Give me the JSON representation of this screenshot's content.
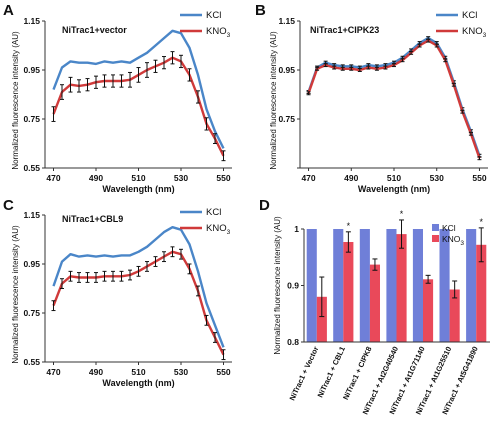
{
  "figure": {
    "panel_letters": [
      "A",
      "B",
      "C",
      "D"
    ]
  },
  "colors": {
    "kcl": "#4a86c8",
    "kno3": "#d03a3a",
    "bar_kcl": "#6f7fd8",
    "bar_kno3": "#e9495a",
    "errorbar": "#111111",
    "marker_kcl": "#1f6fb5",
    "marker_kno3": "#b32020"
  },
  "chart_data": [
    {
      "panel": "A",
      "type": "line",
      "title": "NiTrac1+vector",
      "xlabel": "Wavelength (nm)",
      "ylabel": "Normalized fluorescence intensity (AU)",
      "xlim": [
        466,
        554
      ],
      "ylim": [
        0.55,
        1.15
      ],
      "xticks": [
        470,
        490,
        510,
        530,
        550
      ],
      "yticks": [
        0.55,
        0.75,
        0.95,
        1.15
      ],
      "ytick_labels": [
        "0.55",
        "0.75",
        "0.95",
        "1.15"
      ],
      "legend": "top-right",
      "x": [
        470,
        474,
        478,
        482,
        486,
        490,
        494,
        498,
        502,
        506,
        510,
        514,
        518,
        522,
        526,
        530,
        534,
        538,
        542,
        546,
        550
      ],
      "series": [
        {
          "name": "KCl",
          "label_main": "KCl",
          "label_sub": "",
          "color": "#4a86c8",
          "values": [
            0.87,
            0.96,
            0.985,
            0.98,
            0.98,
            0.975,
            0.985,
            0.98,
            0.985,
            0.98,
            1.0,
            1.02,
            1.05,
            1.08,
            1.11,
            1.1,
            1.04,
            0.93,
            0.79,
            0.7,
            0.63
          ],
          "errors": []
        },
        {
          "name": "KNO3",
          "label_main": "KNO",
          "label_sub": "3",
          "color": "#d03a3a",
          "values": [
            0.77,
            0.86,
            0.89,
            0.885,
            0.89,
            0.9,
            0.905,
            0.905,
            0.905,
            0.91,
            0.93,
            0.95,
            0.965,
            0.98,
            1.0,
            0.985,
            0.93,
            0.84,
            0.73,
            0.67,
            0.6
          ],
          "errors": [
            0.03,
            0.03,
            0.03,
            0.025,
            0.025,
            0.025,
            0.025,
            0.025,
            0.025,
            0.03,
            0.03,
            0.03,
            0.025,
            0.025,
            0.025,
            0.025,
            0.025,
            0.025,
            0.025,
            0.02,
            0.02
          ]
        }
      ]
    },
    {
      "panel": "B",
      "type": "line",
      "title": "NiTrac1+CIPK23",
      "xlabel": "Wavelength (nm)",
      "ylabel": "Normalized fluorescence intensity (AU)",
      "xlim": [
        466,
        554
      ],
      "ylim": [
        0.55,
        1.15
      ],
      "xticks": [
        470,
        490,
        510,
        530,
        550
      ],
      "yticks": [
        0.55,
        0.75,
        0.95,
        1.15
      ],
      "ytick_labels": [
        "",
        "0.75",
        "0.95",
        "1.15"
      ],
      "legend": "top-right",
      "x": [
        470,
        474,
        478,
        482,
        486,
        490,
        494,
        498,
        502,
        506,
        510,
        514,
        518,
        522,
        526,
        530,
        534,
        538,
        542,
        546,
        550
      ],
      "series": [
        {
          "name": "KCl",
          "label_main": "KCl",
          "label_sub": "",
          "color": "#4a86c8",
          "values": [
            0.86,
            0.96,
            0.98,
            0.97,
            0.965,
            0.965,
            0.96,
            0.97,
            0.965,
            0.97,
            0.98,
            1.0,
            1.03,
            1.06,
            1.08,
            1.06,
            1.0,
            0.9,
            0.79,
            0.7,
            0.6
          ],
          "errors": [
            0.006,
            0.006,
            0.006,
            0.006,
            0.006,
            0.006,
            0.006,
            0.006,
            0.006,
            0.006,
            0.006,
            0.006,
            0.006,
            0.006,
            0.006,
            0.006,
            0.006,
            0.006,
            0.006,
            0.006,
            0.006
          ]
        },
        {
          "name": "KNO3",
          "label_main": "KNO",
          "label_sub": "3",
          "color": "#d03a3a",
          "values": [
            0.855,
            0.955,
            0.97,
            0.96,
            0.955,
            0.955,
            0.95,
            0.96,
            0.955,
            0.96,
            0.97,
            0.99,
            1.02,
            1.05,
            1.07,
            1.05,
            0.99,
            0.89,
            0.78,
            0.69,
            0.59
          ],
          "errors": [
            0.006,
            0.006,
            0.006,
            0.006,
            0.006,
            0.006,
            0.006,
            0.006,
            0.006,
            0.006,
            0.006,
            0.006,
            0.006,
            0.006,
            0.006,
            0.006,
            0.006,
            0.006,
            0.006,
            0.006,
            0.006
          ]
        }
      ]
    },
    {
      "panel": "C",
      "type": "line",
      "title": "NiTrac1+CBL9",
      "xlabel": "Wavelength (nm)",
      "ylabel": "Normalized fluorescence intensity (AU)",
      "xlim": [
        466,
        554
      ],
      "ylim": [
        0.55,
        1.15
      ],
      "xticks": [
        470,
        490,
        510,
        530,
        550
      ],
      "yticks": [
        0.55,
        0.75,
        0.95,
        1.15
      ],
      "ytick_labels": [
        "0.55",
        "0.75",
        "0.95",
        "1.15"
      ],
      "legend": "top-right",
      "x": [
        470,
        474,
        478,
        482,
        486,
        490,
        494,
        498,
        502,
        506,
        510,
        514,
        518,
        522,
        526,
        530,
        534,
        538,
        542,
        546,
        550
      ],
      "series": [
        {
          "name": "KCl",
          "label_main": "KCl",
          "label_sub": "",
          "color": "#4a86c8",
          "values": [
            0.86,
            0.96,
            0.99,
            0.98,
            0.985,
            0.98,
            0.985,
            0.98,
            0.985,
            0.985,
            1.0,
            1.02,
            1.05,
            1.08,
            1.1,
            1.09,
            1.03,
            0.92,
            0.79,
            0.7,
            0.61
          ],
          "errors": []
        },
        {
          "name": "KNO3",
          "label_main": "KNO",
          "label_sub": "3",
          "color": "#d03a3a",
          "values": [
            0.78,
            0.87,
            0.9,
            0.895,
            0.895,
            0.895,
            0.9,
            0.9,
            0.9,
            0.905,
            0.92,
            0.94,
            0.96,
            0.98,
            1.0,
            0.99,
            0.93,
            0.84,
            0.72,
            0.65,
            0.58
          ],
          "errors": [
            0.02,
            0.02,
            0.02,
            0.02,
            0.02,
            0.02,
            0.02,
            0.02,
            0.02,
            0.02,
            0.02,
            0.02,
            0.02,
            0.02,
            0.02,
            0.02,
            0.02,
            0.02,
            0.02,
            0.02,
            0.02
          ]
        }
      ]
    },
    {
      "panel": "D",
      "type": "bar",
      "ylabel": "Normalized fluorescence intensity (AU)",
      "ylim": [
        0.8,
        1.0
      ],
      "yticks": [
        0.8,
        0.9,
        1.0
      ],
      "ytick_labels": [
        "0.8",
        "0.9",
        "1"
      ],
      "legend": "top-right",
      "categories": [
        "NiTrac1 + Vector",
        "NiTrac1 + CBL1",
        "NiTrac1 + CIPK8",
        "NiTrac1 + At2G40540",
        "NiTrac1 + At1G71140",
        "NiTrac1 + At1G25510",
        "NiTrac1 + At5G41890"
      ],
      "series": [
        {
          "name": "KCl",
          "label_main": "KCl",
          "label_sub": "",
          "color": "#6f7fd8",
          "values": [
            1.0,
            1.0,
            1.0,
            1.0,
            1.0,
            1.0,
            1.0
          ]
        },
        {
          "name": "KNO3",
          "label_main": "KNO",
          "label_sub": "3",
          "color": "#e9495a",
          "values": [
            0.88,
            0.977,
            0.937,
            0.991,
            0.911,
            0.893,
            0.972
          ],
          "errors": [
            0.035,
            0.018,
            0.01,
            0.025,
            0.007,
            0.015,
            0.03
          ]
        }
      ],
      "significance": [
        "",
        "*",
        "",
        "*",
        "",
        "",
        "*"
      ]
    }
  ]
}
